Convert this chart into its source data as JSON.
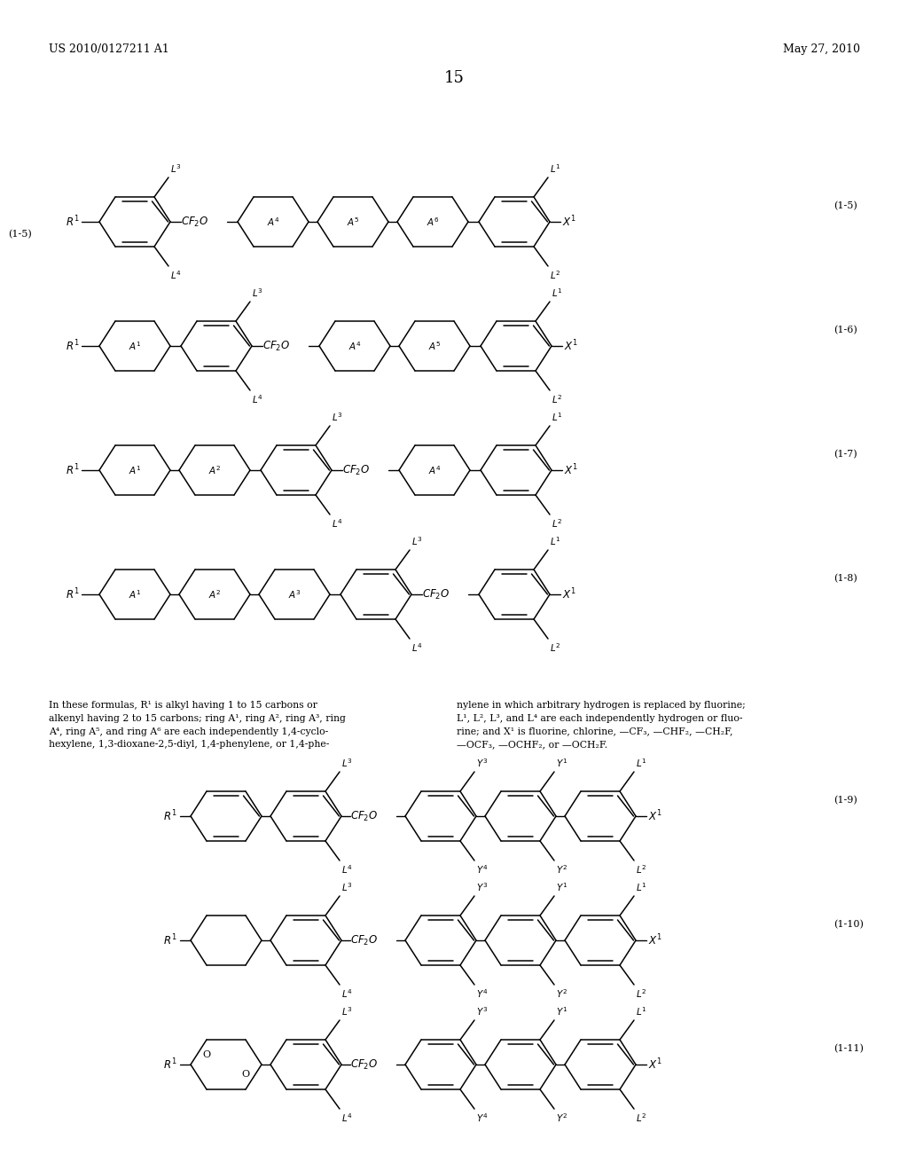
{
  "page_number": "15",
  "patent_number": "US 2010/0127211 A1",
  "patent_date": "May 27, 2010",
  "background_color": "#ffffff",
  "col1_footnote": "In these formulas, R¹ is alkyl having 1 to 15 carbons or\nalkenyl having 2 to 15 carbons; ring A¹, ring A², ring A³, ring\nA⁴, ring A⁵, and ring A⁶ are each independently 1,4-cyclo-\nhexylene, 1,3-dioxane-2,5-diyl, 1,4-phenylene, or 1,4-phe-",
  "col2_footnote": "nylene in which arbitrary hydrogen is replaced by fluorine;\nL¹, L², L³, and L⁴ are each independently hydrogen or fluo-\nrine; and X¹ is fluorine, chlorine, —CF₃, —CHF₂, —CH₂F,\n—OCF₃, —OCHF₂, or —OCH₂F."
}
